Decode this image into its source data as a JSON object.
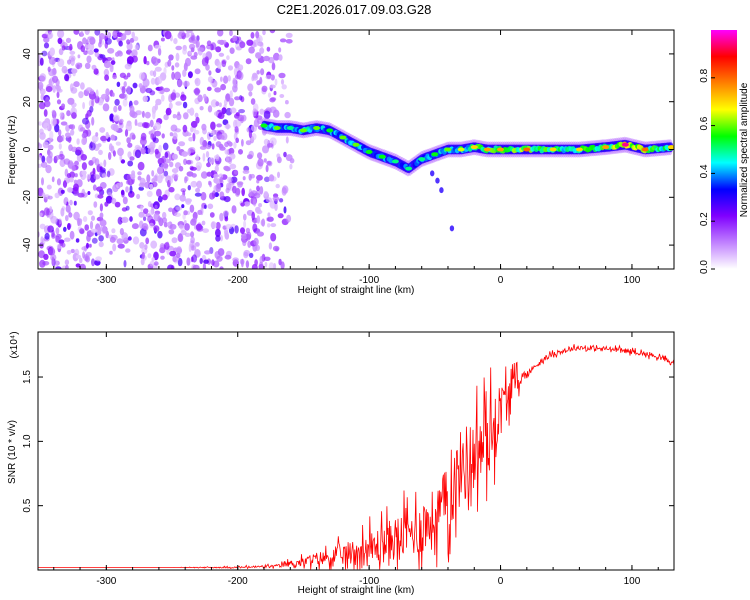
{
  "figure": {
    "title": "C2E1.2026.017.09.03.G28"
  },
  "chart_data": [
    {
      "type": "heatmap",
      "xlabel": "Height of straight line (km)",
      "ylabel": "Frequency (Hz)",
      "xlim": [
        -352,
        132
      ],
      "ylim": [
        -50,
        50
      ],
      "xticks": [
        -300,
        -200,
        -100,
        0,
        100
      ],
      "yticks": [
        -40,
        -20,
        0,
        20,
        40
      ],
      "colorbar": {
        "label": "Normalized spectral amplitude",
        "range": [
          0.0,
          1.0
        ],
        "ticks": [
          "0.0",
          "0.2",
          "0.4",
          "0.6",
          "0.8"
        ],
        "colors": [
          "#ffffff",
          "#c080ff",
          "#8000ff",
          "#0000ff",
          "#00ffff",
          "#00ff00",
          "#ffff00",
          "#ff8000",
          "#ff0000",
          "#ff00ff"
        ]
      },
      "noise_region_x": [
        -352,
        -155
      ],
      "ridge": [
        {
          "x": -180,
          "y": 10,
          "amp": 0.55
        },
        {
          "x": -170,
          "y": 9,
          "amp": 0.6
        },
        {
          "x": -160,
          "y": 9,
          "amp": 0.5
        },
        {
          "x": -150,
          "y": 8,
          "amp": 0.6
        },
        {
          "x": -140,
          "y": 9,
          "amp": 0.6
        },
        {
          "x": -130,
          "y": 8,
          "amp": 0.55
        },
        {
          "x": -120,
          "y": 5,
          "amp": 0.6
        },
        {
          "x": -110,
          "y": 2,
          "amp": 0.6
        },
        {
          "x": -100,
          "y": -1,
          "amp": 0.55
        },
        {
          "x": -90,
          "y": -3,
          "amp": 0.55
        },
        {
          "x": -80,
          "y": -5,
          "amp": 0.5
        },
        {
          "x": -70,
          "y": -8,
          "amp": 0.5
        },
        {
          "x": -60,
          "y": -4,
          "amp": 0.5
        },
        {
          "x": -50,
          "y": -2,
          "amp": 0.55
        },
        {
          "x": -40,
          "y": 0,
          "amp": 0.6
        },
        {
          "x": -30,
          "y": 0,
          "amp": 0.65
        },
        {
          "x": -20,
          "y": 1,
          "amp": 0.7
        },
        {
          "x": -10,
          "y": 0,
          "amp": 0.75
        },
        {
          "x": 0,
          "y": 0,
          "amp": 0.75
        },
        {
          "x": 20,
          "y": 0,
          "amp": 0.8
        },
        {
          "x": 40,
          "y": 0,
          "amp": 0.7
        },
        {
          "x": 60,
          "y": 0,
          "amp": 0.7
        },
        {
          "x": 80,
          "y": 1,
          "amp": 0.75
        },
        {
          "x": 95,
          "y": 2,
          "amp": 0.95
        },
        {
          "x": 110,
          "y": 0,
          "amp": 0.8
        },
        {
          "x": 130,
          "y": 1,
          "amp": 0.7
        }
      ]
    },
    {
      "type": "line",
      "xlabel": "Height of straight line (km)",
      "ylabel": "SNR (10 * v/v)",
      "y_multiplier": "(x10⁴)",
      "xlim": [
        -352,
        132
      ],
      "ylim": [
        0,
        1.85
      ],
      "xticks": [
        -300,
        -200,
        -100,
        0,
        100
      ],
      "yticks": [
        0.5,
        1.0,
        1.5
      ],
      "ytick_labels": [
        "0.5",
        "1.0",
        "1.5"
      ],
      "series": [
        {
          "color": "#ff0000",
          "x": [
            -352,
            -300,
            -250,
            -200,
            -170,
            -160,
            -150,
            -140,
            -130,
            -120,
            -110,
            -100,
            -90,
            -80,
            -70,
            -60,
            -50,
            -40,
            -30,
            -20,
            -10,
            0,
            10,
            20,
            30,
            40,
            50,
            60,
            70,
            80,
            90,
            100,
            110,
            120,
            132
          ],
          "y": [
            0.02,
            0.02,
            0.02,
            0.02,
            0.03,
            0.05,
            0.06,
            0.09,
            0.1,
            0.12,
            0.14,
            0.16,
            0.2,
            0.25,
            0.28,
            0.33,
            0.4,
            0.55,
            0.8,
            0.9,
            1.0,
            1.25,
            1.45,
            1.52,
            1.62,
            1.68,
            1.71,
            1.73,
            1.72,
            1.72,
            1.71,
            1.7,
            1.68,
            1.66,
            1.6
          ],
          "noise_amp": [
            0.0,
            0.0,
            0.0,
            0.01,
            0.02,
            0.04,
            0.06,
            0.08,
            0.1,
            0.14,
            0.18,
            0.22,
            0.25,
            0.28,
            0.3,
            0.35,
            0.4,
            0.45,
            0.5,
            0.5,
            0.5,
            0.35,
            0.15,
            0.05,
            0.03,
            0.03,
            0.03,
            0.03,
            0.03,
            0.03,
            0.03,
            0.03,
            0.03,
            0.03,
            0.03
          ]
        }
      ]
    }
  ]
}
